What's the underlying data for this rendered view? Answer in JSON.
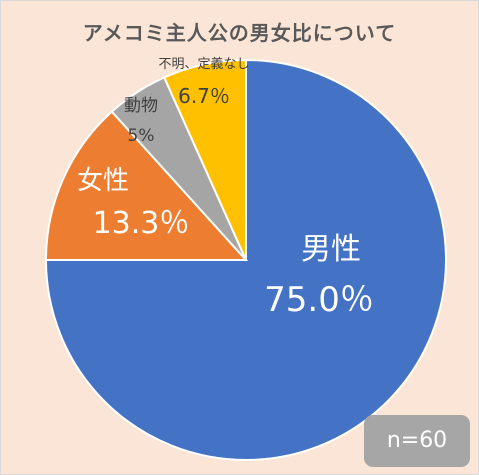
{
  "chart_data": {
    "type": "pie",
    "title": "アメコミ主人公の男女比について",
    "slices": [
      {
        "label": "男性",
        "value": 75.0,
        "value_label": "75.0％",
        "color": "#4472c4",
        "text_color": "#ffffff"
      },
      {
        "label": "女性",
        "value": 13.3,
        "value_label": "13.3％",
        "color": "#ed7d31",
        "text_color": "#ffffff"
      },
      {
        "label": "動物",
        "value": 5,
        "value_label": "5%",
        "color": "#a5a5a5",
        "text_color": "#404040"
      },
      {
        "label": "不明、定義なし",
        "value": 6.7,
        "value_label": "6.7％",
        "color": "#ffc000",
        "text_color": "#404040"
      }
    ],
    "start": "top, clockwise",
    "background": "#fbe5d6",
    "note": "n=60"
  }
}
